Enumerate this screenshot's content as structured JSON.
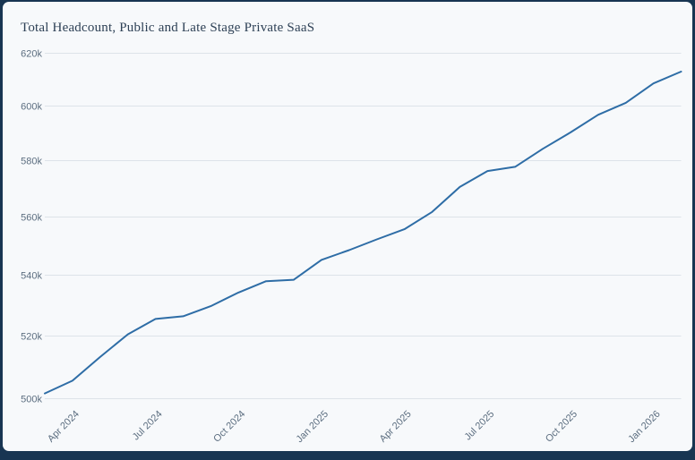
{
  "frame": {
    "background_color": "#183552",
    "card_color": "#f7f9fb"
  },
  "chart": {
    "title": "Total Headcount, Public and Late Stage Private SaaS"
  },
  "chart_data": {
    "type": "line",
    "title": "Total Headcount, Public and Late Stage Private SaaS",
    "x": [
      "Mar 2024",
      "Apr 2024",
      "May 2024",
      "Jun 2024",
      "Jul 2024",
      "Aug 2024",
      "Sep 2024",
      "Oct 2024",
      "Nov 2024",
      "Dec 2024",
      "Jan 2025",
      "Feb 2025",
      "Mar 2025",
      "Apr 2025",
      "May 2025",
      "Jun 2025",
      "Jul 2025",
      "Aug 2025",
      "Sep 2025",
      "Oct 2025",
      "Nov 2025",
      "Dec 2025",
      "Jan 2026",
      "Feb 2026"
    ],
    "values": [
      501500,
      505500,
      513000,
      520300,
      525300,
      526200,
      529500,
      534000,
      537800,
      538300,
      545000,
      548300,
      552000,
      555500,
      561500,
      570300,
      576000,
      577500,
      584000,
      590000,
      596500,
      601000,
      608300,
      612800
    ],
    "x_tick_labels": [
      "Apr 2024",
      "Jul 2024",
      "Oct 2024",
      "Jan 2025",
      "Apr 2025",
      "Jul 2025",
      "Oct 2025",
      "Jan 2026"
    ],
    "x_tick_indices": [
      1,
      4,
      7,
      10,
      13,
      16,
      19,
      22
    ],
    "y_ticks": [
      500000,
      520000,
      540000,
      560000,
      580000,
      600000,
      620000
    ],
    "y_tick_labels": [
      "500k",
      "520k",
      "540k",
      "560k",
      "580k",
      "600k",
      "620k"
    ],
    "ylim": [
      500000,
      620000
    ],
    "y_scale": "log",
    "grid": true,
    "legend": "none",
    "line_color": "#2e6da6",
    "grid_color": "#dde3e9",
    "axis_label_color": "#5c6e80",
    "title_color": "#2e4156"
  }
}
